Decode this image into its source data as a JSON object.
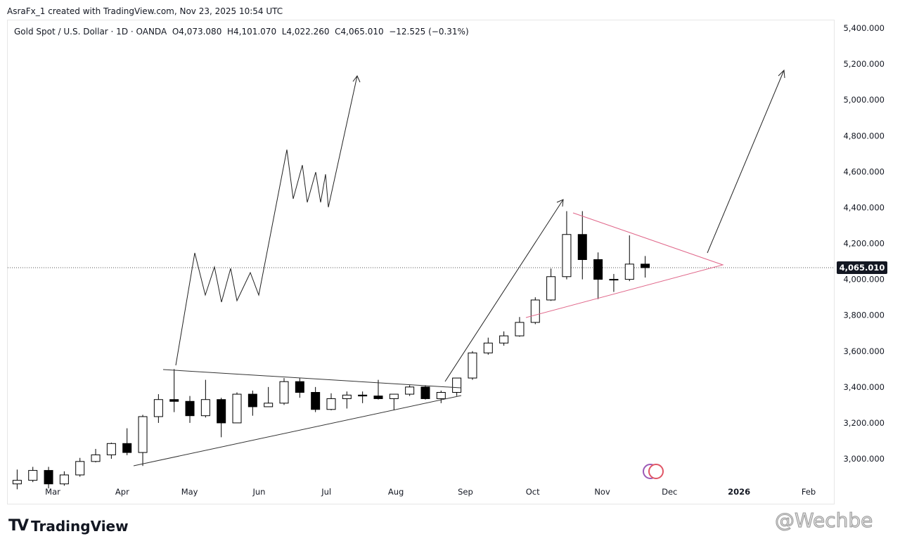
{
  "credit": "AsraFx_1 created with TradingView.com, Nov 23, 2025 10:54 UTC",
  "legend": {
    "symbol": "Gold Spot / U.S. Dollar · 1D · OANDA",
    "open": "O4,073.080",
    "high": "H4,101.070",
    "low": "L4,022.260",
    "close": "C4,065.010",
    "change": "−12.525 (−0.31%)"
  },
  "logo": "TradingView",
  "watermark": "@Wechbe",
  "chart_data": {
    "type": "candlestick",
    "title": "Gold Spot / U.S. Dollar · 1D · OANDA",
    "ylim": [
      2880,
      5420
    ],
    "y_ticks": [
      "3,000.000",
      "3,200.000",
      "3,400.000",
      "3,600.000",
      "3,800.000",
      "4,000.000",
      "4,200.000",
      "4,400.000",
      "4,600.000",
      "4,800.000",
      "5,000.000",
      "5,200.000",
      "5,400.000"
    ],
    "y_tick_values": [
      3000,
      3200,
      3400,
      3600,
      3800,
      4000,
      4200,
      4400,
      4600,
      4800,
      5000,
      5200,
      5400
    ],
    "x_ticks": [
      {
        "label": "Mar",
        "date": "2025-03-01"
      },
      {
        "label": "Apr",
        "date": "2025-04-01"
      },
      {
        "label": "May",
        "date": "2025-05-01"
      },
      {
        "label": "Jun",
        "date": "2025-06-01"
      },
      {
        "label": "Jul",
        "date": "2025-07-01"
      },
      {
        "label": "Aug",
        "date": "2025-08-01"
      },
      {
        "label": "Sep",
        "date": "2025-09-01"
      },
      {
        "label": "Oct",
        "date": "2025-10-01"
      },
      {
        "label": "Nov",
        "date": "2025-11-01"
      },
      {
        "label": "Dec",
        "date": "2025-12-01"
      },
      {
        "label": "2026",
        "date": "2026-01-01",
        "bold": true
      },
      {
        "label": "Feb",
        "date": "2026-02-01"
      }
    ],
    "last_price": 4065.01,
    "last_price_label": "4,065.010",
    "up_color": "#ffffff",
    "down_color": "#000000",
    "candles": [
      [
        "2025-02-10",
        2860,
        2940,
        2830,
        2880
      ],
      [
        "2025-02-17",
        2880,
        2955,
        2870,
        2935
      ],
      [
        "2025-02-24",
        2935,
        2955,
        2835,
        2860
      ],
      [
        "2025-03-03",
        2860,
        2930,
        2850,
        2910
      ],
      [
        "2025-03-10",
        2910,
        3005,
        2900,
        2985
      ],
      [
        "2025-03-17",
        2985,
        3055,
        2980,
        3022
      ],
      [
        "2025-03-24",
        3022,
        3090,
        3000,
        3085
      ],
      [
        "2025-03-31",
        3085,
        3170,
        3020,
        3035
      ],
      [
        "2025-04-07",
        3035,
        3245,
        2960,
        3235
      ],
      [
        "2025-04-14",
        3235,
        3360,
        3200,
        3330
      ],
      [
        "2025-04-21",
        3330,
        3500,
        3260,
        3320
      ],
      [
        "2025-04-28",
        3320,
        3350,
        3200,
        3240
      ],
      [
        "2025-05-05",
        3240,
        3440,
        3230,
        3330
      ],
      [
        "2025-05-12",
        3330,
        3340,
        3120,
        3200
      ],
      [
        "2025-05-19",
        3200,
        3370,
        3200,
        3360
      ],
      [
        "2025-05-26",
        3360,
        3380,
        3240,
        3290
      ],
      [
        "2025-06-02",
        3290,
        3400,
        3290,
        3310
      ],
      [
        "2025-06-09",
        3310,
        3450,
        3300,
        3430
      ],
      [
        "2025-06-16",
        3430,
        3450,
        3340,
        3370
      ],
      [
        "2025-06-23",
        3370,
        3400,
        3260,
        3275
      ],
      [
        "2025-06-30",
        3275,
        3365,
        3270,
        3335
      ],
      [
        "2025-07-07",
        3335,
        3375,
        3280,
        3355
      ],
      [
        "2025-07-14",
        3355,
        3375,
        3310,
        3350
      ],
      [
        "2025-07-21",
        3350,
        3440,
        3330,
        3335
      ],
      [
        "2025-07-28",
        3335,
        3360,
        3270,
        3360
      ],
      [
        "2025-08-04",
        3360,
        3410,
        3350,
        3400
      ],
      [
        "2025-08-11",
        3400,
        3410,
        3330,
        3335
      ],
      [
        "2025-08-18",
        3335,
        3380,
        3310,
        3370
      ],
      [
        "2025-08-25",
        3370,
        3450,
        3350,
        3450
      ],
      [
        "2025-09-01",
        3450,
        3600,
        3440,
        3590
      ],
      [
        "2025-09-08",
        3590,
        3675,
        3580,
        3645
      ],
      [
        "2025-09-15",
        3645,
        3710,
        3630,
        3685
      ],
      [
        "2025-09-22",
        3685,
        3790,
        3680,
        3760
      ],
      [
        "2025-09-29",
        3760,
        3900,
        3750,
        3885
      ],
      [
        "2025-10-06",
        3885,
        4060,
        3880,
        4015
      ],
      [
        "2025-10-13",
        4015,
        4380,
        4000,
        4250
      ],
      [
        "2025-10-20",
        4250,
        4380,
        4000,
        4110
      ],
      [
        "2025-10-27",
        4110,
        4150,
        3890,
        4000
      ],
      [
        "2025-11-03",
        4000,
        4030,
        3930,
        4000
      ],
      [
        "2025-11-10",
        4000,
        4245,
        3990,
        4085
      ],
      [
        "2025-11-17",
        4085,
        4130,
        4010,
        4065
      ]
    ]
  }
}
